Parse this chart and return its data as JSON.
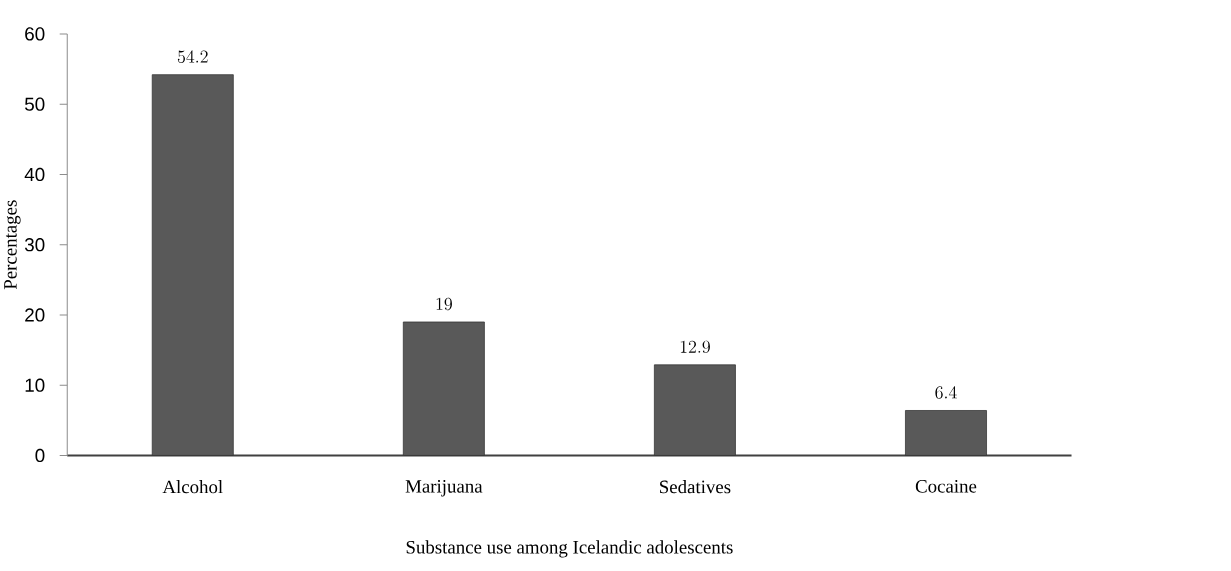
{
  "chart_data": {
    "type": "bar",
    "xlabel": "Substance use among Icelandic adolescents",
    "ylabel": "Percentages",
    "categories": [
      "Alcohol",
      "Marijuana",
      "Sedatives",
      "Cocaine"
    ],
    "values": [
      54.2,
      19,
      12.9,
      6.4
    ],
    "color": "#595959",
    "ylim": [
      0,
      60
    ],
    "yticks": [
      0,
      10,
      20,
      30,
      40,
      50,
      60
    ],
    "data_labels": true
  }
}
